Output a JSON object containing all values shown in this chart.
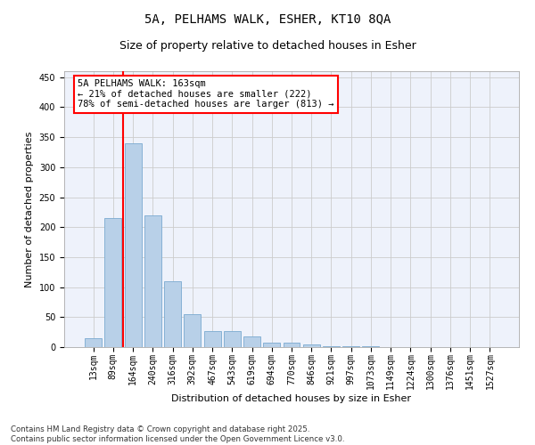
{
  "title": "5A, PELHAMS WALK, ESHER, KT10 8QA",
  "subtitle": "Size of property relative to detached houses in Esher",
  "xlabel": "Distribution of detached houses by size in Esher",
  "ylabel": "Number of detached properties",
  "categories": [
    "13sqm",
    "89sqm",
    "164sqm",
    "240sqm",
    "316sqm",
    "392sqm",
    "467sqm",
    "543sqm",
    "619sqm",
    "694sqm",
    "770sqm",
    "846sqm",
    "921sqm",
    "997sqm",
    "1073sqm",
    "1149sqm",
    "1224sqm",
    "1300sqm",
    "1376sqm",
    "1451sqm",
    "1527sqm"
  ],
  "values": [
    15,
    215,
    340,
    220,
    110,
    55,
    27,
    26,
    18,
    8,
    7,
    5,
    2,
    1,
    1,
    0,
    0,
    0,
    0,
    0,
    0
  ],
  "bar_color": "#b8d0e8",
  "bar_edge_color": "#7aaad0",
  "vline_color": "red",
  "annotation_text": "5A PELHAMS WALK: 163sqm\n← 21% of detached houses are smaller (222)\n78% of semi-detached houses are larger (813) →",
  "annotation_box_color": "white",
  "annotation_box_edge_color": "red",
  "ylim": [
    0,
    460
  ],
  "yticks": [
    0,
    50,
    100,
    150,
    200,
    250,
    300,
    350,
    400,
    450
  ],
  "grid_color": "#cccccc",
  "bg_color": "#eef2fb",
  "footer": "Contains HM Land Registry data © Crown copyright and database right 2025.\nContains public sector information licensed under the Open Government Licence v3.0.",
  "title_fontsize": 10,
  "subtitle_fontsize": 9,
  "tick_fontsize": 7,
  "label_fontsize": 8,
  "annotation_fontsize": 7.5
}
